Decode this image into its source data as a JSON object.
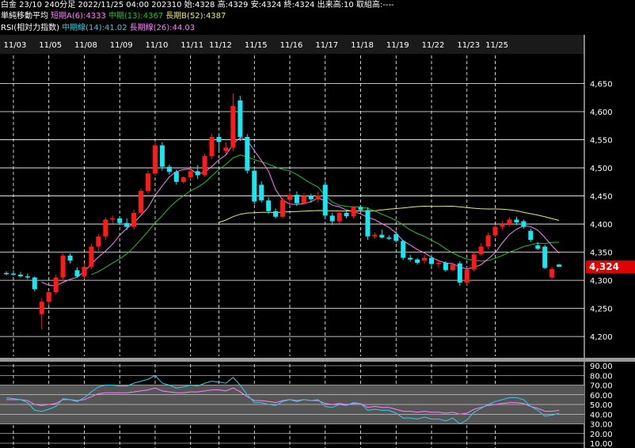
{
  "header": {
    "line1": "白金 23/10 240分足 2022/11/25 04:00 202310 始:4328 高:4329 安:4324 終:4324 出来高:10 取組高:----",
    "ma_title": "単純移動平均",
    "ma_short": "短期A(6):4333",
    "ma_mid": "中期(13):4367",
    "ma_long": "長期B(52):4387",
    "rsi_title": "RSI(相対力指数)",
    "rsi_mid": "中期線(14):41.02",
    "rsi_long": "長期線(26):44.03"
  },
  "colors": {
    "up": "#ff1a1a",
    "down": "#19e6f0",
    "ma_short": "#ff80ff",
    "ma_mid": "#22c322",
    "ma_long": "#e8e878",
    "rsi_mid": "#33cfe0",
    "rsi_long": "#ff80ff",
    "price_tag": "#e00000"
  },
  "chart_data": {
    "type": "candlestick",
    "last_price_label": "4,324",
    "x_dates": [
      "11/03",
      "11/05",
      "11/08",
      "11/09",
      "11/10",
      "11/11",
      "11/12",
      "11/15",
      "11/16",
      "11/17",
      "11/18",
      "11/19",
      "11/22",
      "11/23",
      "11/25"
    ],
    "date_positions": [
      1,
      6,
      11,
      16,
      21,
      26,
      30,
      35,
      40,
      45,
      50,
      55,
      60,
      65,
      69
    ],
    "price_ticks": [
      "4,650",
      "4,600",
      "4,550",
      "4,500",
      "4,450",
      "4,400",
      "4,350",
      "4,300",
      "4,250",
      "4,200"
    ],
    "price_tick_values": [
      4650,
      4600,
      4550,
      4500,
      4450,
      4400,
      4350,
      4300,
      4250,
      4200
    ],
    "price_range": [
      4165,
      4700
    ],
    "rsi_ticks": [
      "90.00",
      "80.00",
      "70.00",
      "60.00",
      "50.00",
      "40.00",
      "30.00",
      "20.00",
      "10.00"
    ],
    "rsi_tick_values": [
      90,
      80,
      70,
      60,
      50,
      40,
      30,
      20,
      10
    ],
    "rsi_range": [
      10,
      90
    ],
    "candles": [
      {
        "o": 4313,
        "h": 4316,
        "l": 4309,
        "c": 4312
      },
      {
        "o": 4312,
        "h": 4318,
        "l": 4308,
        "c": 4310
      },
      {
        "o": 4310,
        "h": 4315,
        "l": 4305,
        "c": 4307
      },
      {
        "o": 4307,
        "h": 4312,
        "l": 4302,
        "c": 4305
      },
      {
        "o": 4305,
        "h": 4307,
        "l": 4280,
        "c": 4284
      },
      {
        "o": 4240,
        "h": 4268,
        "l": 4213,
        "c": 4262
      },
      {
        "o": 4262,
        "h": 4282,
        "l": 4256,
        "c": 4279
      },
      {
        "o": 4279,
        "h": 4310,
        "l": 4275,
        "c": 4305
      },
      {
        "o": 4305,
        "h": 4348,
        "l": 4298,
        "c": 4344
      },
      {
        "o": 4344,
        "h": 4348,
        "l": 4330,
        "c": 4335
      },
      {
        "o": 4318,
        "h": 4323,
        "l": 4304,
        "c": 4307
      },
      {
        "o": 4307,
        "h": 4330,
        "l": 4302,
        "c": 4324
      },
      {
        "o": 4324,
        "h": 4365,
        "l": 4320,
        "c": 4360
      },
      {
        "o": 4360,
        "h": 4382,
        "l": 4352,
        "c": 4378
      },
      {
        "o": 4378,
        "h": 4412,
        "l": 4372,
        "c": 4408
      },
      {
        "o": 4408,
        "h": 4415,
        "l": 4401,
        "c": 4410
      },
      {
        "o": 4410,
        "h": 4412,
        "l": 4398,
        "c": 4402
      },
      {
        "o": 4402,
        "h": 4410,
        "l": 4389,
        "c": 4395
      },
      {
        "o": 4395,
        "h": 4425,
        "l": 4390,
        "c": 4420
      },
      {
        "o": 4420,
        "h": 4463,
        "l": 4416,
        "c": 4459
      },
      {
        "o": 4459,
        "h": 4495,
        "l": 4454,
        "c": 4490
      },
      {
        "o": 4490,
        "h": 4545,
        "l": 4486,
        "c": 4540
      },
      {
        "o": 4540,
        "h": 4546,
        "l": 4495,
        "c": 4502
      },
      {
        "o": 4502,
        "h": 4506,
        "l": 4488,
        "c": 4493
      },
      {
        "o": 4493,
        "h": 4497,
        "l": 4470,
        "c": 4475
      },
      {
        "o": 4475,
        "h": 4485,
        "l": 4472,
        "c": 4483
      },
      {
        "o": 4483,
        "h": 4500,
        "l": 4479,
        "c": 4494
      },
      {
        "o": 4494,
        "h": 4505,
        "l": 4480,
        "c": 4487
      },
      {
        "o": 4487,
        "h": 4525,
        "l": 4484,
        "c": 4521
      },
      {
        "o": 4521,
        "h": 4560,
        "l": 4516,
        "c": 4555
      },
      {
        "o": 4555,
        "h": 4562,
        "l": 4530,
        "c": 4546
      },
      {
        "o": 4530,
        "h": 4545,
        "l": 4524,
        "c": 4536
      },
      {
        "o": 4536,
        "h": 4632,
        "l": 4530,
        "c": 4610
      },
      {
        "o": 4620,
        "h": 4628,
        "l": 4548,
        "c": 4555
      },
      {
        "o": 4555,
        "h": 4560,
        "l": 4490,
        "c": 4495
      },
      {
        "o": 4495,
        "h": 4500,
        "l": 4435,
        "c": 4440
      },
      {
        "o": 4470,
        "h": 4476,
        "l": 4438,
        "c": 4442
      },
      {
        "o": 4442,
        "h": 4448,
        "l": 4418,
        "c": 4423
      },
      {
        "o": 4423,
        "h": 4428,
        "l": 4410,
        "c": 4413
      },
      {
        "o": 4413,
        "h": 4448,
        "l": 4410,
        "c": 4443
      },
      {
        "o": 4443,
        "h": 4456,
        "l": 4436,
        "c": 4452
      },
      {
        "o": 4452,
        "h": 4458,
        "l": 4432,
        "c": 4437
      },
      {
        "o": 4437,
        "h": 4455,
        "l": 4434,
        "c": 4450
      },
      {
        "o": 4450,
        "h": 4454,
        "l": 4438,
        "c": 4444
      },
      {
        "o": 4444,
        "h": 4458,
        "l": 4438,
        "c": 4451
      },
      {
        "o": 4470,
        "h": 4476,
        "l": 4410,
        "c": 4415
      },
      {
        "o": 4415,
        "h": 4420,
        "l": 4398,
        "c": 4405
      },
      {
        "o": 4405,
        "h": 4425,
        "l": 4400,
        "c": 4420
      },
      {
        "o": 4420,
        "h": 4426,
        "l": 4410,
        "c": 4414
      },
      {
        "o": 4414,
        "h": 4432,
        "l": 4410,
        "c": 4430
      },
      {
        "o": 4430,
        "h": 4432,
        "l": 4420,
        "c": 4425
      },
      {
        "o": 4425,
        "h": 4430,
        "l": 4372,
        "c": 4378
      },
      {
        "o": 4378,
        "h": 4385,
        "l": 4374,
        "c": 4381
      },
      {
        "o": 4381,
        "h": 4390,
        "l": 4374,
        "c": 4376
      },
      {
        "o": 4376,
        "h": 4380,
        "l": 4372,
        "c": 4374
      },
      {
        "o": 4382,
        "h": 4388,
        "l": 4367,
        "c": 4370
      },
      {
        "o": 4370,
        "h": 4372,
        "l": 4336,
        "c": 4340
      },
      {
        "o": 4340,
        "h": 4345,
        "l": 4333,
        "c": 4337
      },
      {
        "o": 4337,
        "h": 4340,
        "l": 4328,
        "c": 4331
      },
      {
        "o": 4335,
        "h": 4345,
        "l": 4330,
        "c": 4340
      },
      {
        "o": 4340,
        "h": 4344,
        "l": 4326,
        "c": 4329
      },
      {
        "o": 4329,
        "h": 4336,
        "l": 4322,
        "c": 4331
      },
      {
        "o": 4331,
        "h": 4334,
        "l": 4315,
        "c": 4318
      },
      {
        "o": 4318,
        "h": 4332,
        "l": 4316,
        "c": 4328
      },
      {
        "o": 4330,
        "h": 4334,
        "l": 4290,
        "c": 4296
      },
      {
        "o": 4296,
        "h": 4322,
        "l": 4291,
        "c": 4319
      },
      {
        "o": 4319,
        "h": 4350,
        "l": 4316,
        "c": 4346
      },
      {
        "o": 4346,
        "h": 4366,
        "l": 4344,
        "c": 4360
      },
      {
        "o": 4360,
        "h": 4385,
        "l": 4355,
        "c": 4380
      },
      {
        "o": 4380,
        "h": 4398,
        "l": 4377,
        "c": 4395
      },
      {
        "o": 4395,
        "h": 4405,
        "l": 4390,
        "c": 4400
      },
      {
        "o": 4400,
        "h": 4412,
        "l": 4396,
        "c": 4408
      },
      {
        "o": 4408,
        "h": 4413,
        "l": 4398,
        "c": 4403
      },
      {
        "o": 4405,
        "h": 4408,
        "l": 4392,
        "c": 4395
      },
      {
        "o": 4388,
        "h": 4392,
        "l": 4368,
        "c": 4372
      },
      {
        "o": 4362,
        "h": 4368,
        "l": 4354,
        "c": 4356
      },
      {
        "o": 4360,
        "h": 4363,
        "l": 4320,
        "c": 4322
      },
      {
        "o": 4305,
        "h": 4324,
        "l": 4302,
        "c": 4320
      },
      {
        "o": 4328,
        "h": 4329,
        "l": 4324,
        "c": 4324
      }
    ],
    "ma_long_start": 30,
    "rsi_mid": [
      57,
      56,
      55,
      52,
      44,
      43,
      45,
      48,
      56,
      55,
      53,
      57,
      63,
      68,
      70,
      70,
      69,
      69,
      72,
      74,
      76,
      80,
      72,
      70,
      67,
      68,
      70,
      69,
      72,
      74,
      73,
      72,
      78,
      70,
      60,
      52,
      52,
      50,
      49,
      53,
      55,
      53,
      55,
      54,
      55,
      48,
      47,
      50,
      49,
      52,
      51,
      44,
      45,
      44,
      44,
      41,
      36,
      36,
      35,
      37,
      35,
      35,
      33,
      36,
      30,
      34,
      42,
      46,
      50,
      53,
      55,
      57,
      57,
      55,
      48,
      44,
      38,
      39,
      41
    ],
    "rsi_long": [
      55,
      55,
      55,
      54,
      50,
      49,
      50,
      51,
      55,
      55,
      54,
      55,
      58,
      61,
      62,
      62,
      62,
      62,
      63,
      64,
      65,
      67,
      64,
      63,
      62,
      62,
      63,
      63,
      64,
      65,
      65,
      64,
      67,
      63,
      58,
      54,
      54,
      53,
      52,
      54,
      55,
      54,
      55,
      54,
      54,
      51,
      50,
      51,
      50,
      51,
      51,
      47,
      48,
      47,
      47,
      45,
      43,
      43,
      42,
      43,
      42,
      42,
      41,
      42,
      40,
      41,
      45,
      47,
      49,
      50,
      51,
      52,
      52,
      51,
      48,
      46,
      43,
      43,
      44
    ]
  }
}
